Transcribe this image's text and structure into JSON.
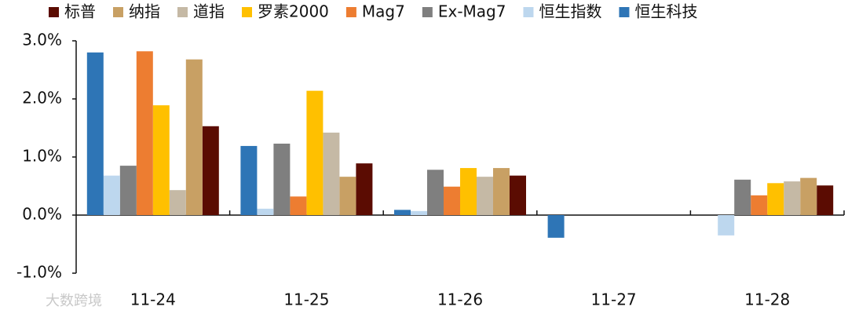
{
  "chart_data": {
    "type": "bar",
    "categories": [
      "11-24",
      "11-25",
      "11-26",
      "11-27",
      "11-28"
    ],
    "series": [
      {
        "name": "标普",
        "color": "#5b0c02",
        "values": [
          1.53,
          0.89,
          0.68,
          null,
          0.51
        ]
      },
      {
        "name": "纳指",
        "color": "#c8a064",
        "values": [
          2.68,
          0.66,
          0.81,
          null,
          0.64
        ]
      },
      {
        "name": "道指",
        "color": "#c5b9a5",
        "values": [
          0.43,
          1.42,
          0.66,
          null,
          0.58
        ]
      },
      {
        "name": "罗素2000",
        "color": "#ffc000",
        "values": [
          1.89,
          2.14,
          0.81,
          null,
          0.55
        ]
      },
      {
        "name": "Mag7",
        "color": "#ed7d31",
        "values": [
          2.82,
          0.32,
          0.49,
          null,
          0.34
        ]
      },
      {
        "name": "Ex-Mag7",
        "color": "#7f7f7f",
        "values": [
          0.85,
          1.23,
          0.78,
          null,
          0.61
        ]
      },
      {
        "name": "恒生指数",
        "color": "#bdd7ee",
        "values": [
          0.68,
          0.11,
          0.07,
          null,
          -0.35
        ]
      },
      {
        "name": "恒生科技",
        "color": "#2e75b6",
        "values": [
          2.8,
          1.19,
          0.09,
          -0.39,
          null
        ]
      }
    ],
    "ylim": [
      -1,
      3
    ],
    "yticks": [
      {
        "value": -1,
        "label": "-1.0%"
      },
      {
        "value": 0,
        "label": "0.0%"
      },
      {
        "value": 1,
        "label": "1.0%"
      },
      {
        "value": 2,
        "label": "2.0%"
      },
      {
        "value": 3,
        "label": "3.0%"
      }
    ],
    "grid": false,
    "watermark": "大数跨境"
  }
}
